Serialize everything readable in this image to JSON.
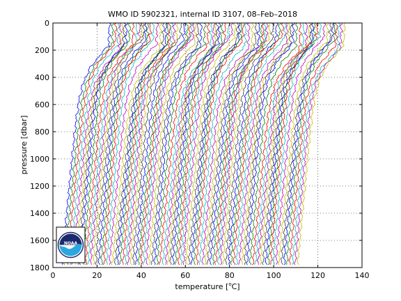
{
  "chart_data": {
    "type": "line",
    "title": "WMO ID 5902321, internal ID 3107, 08–Feb–2018",
    "xlabel_prefix": "temperature [",
    "xlabel_sup": "o",
    "xlabel_suffix": "C]",
    "ylabel": "pressure [dbar]",
    "xlim": [
      0,
      140
    ],
    "ylim": [
      0,
      1800
    ],
    "y_reversed": true,
    "grid": "dotted",
    "x_ticks": [
      "0",
      "20",
      "40",
      "60",
      "80",
      "100",
      "120",
      "140"
    ],
    "y_ticks": [
      "0",
      "200",
      "400",
      "600",
      "800",
      "1000",
      "1200",
      "1400",
      "1600",
      "1800"
    ],
    "offset_profiles": {
      "count": 90,
      "offset_step_degC": 1.2,
      "first_profile_surface_temp": 25.6,
      "first_profile_deep_temp": 4.0,
      "max_pressure_dbar": 1780,
      "colors": [
        "#0000ff",
        "#008000",
        "#ff0000",
        "#00bfbf",
        "#bf00bf",
        "#bfbf00",
        "#404040"
      ]
    },
    "logo": {
      "text": "NOAA",
      "colors": {
        "dark": "#1a2a6c",
        "light": "#2aa7e0",
        "white": "#ffffff"
      }
    }
  }
}
